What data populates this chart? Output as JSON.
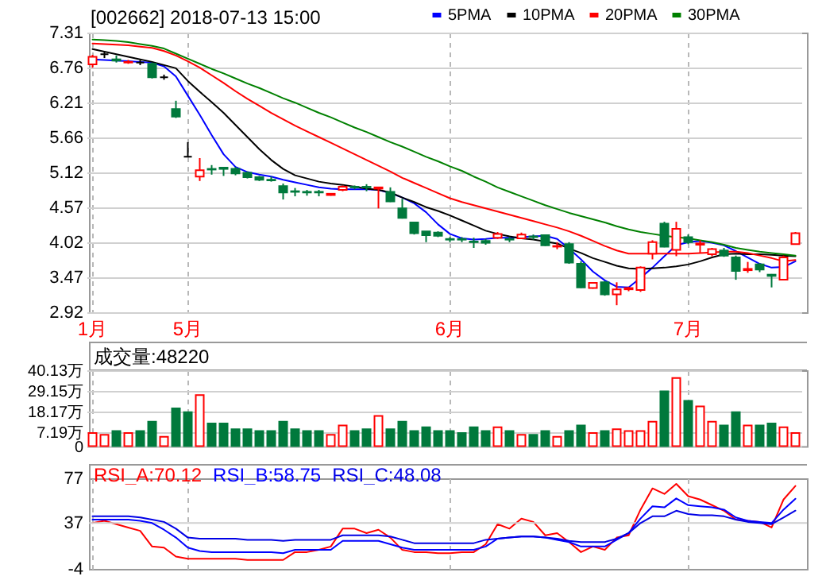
{
  "chart_data": [
    {
      "type": "candlestick",
      "title": "[002662] 2018-07-13 15:00",
      "categories": [
        "1月",
        null,
        null,
        null,
        null,
        null,
        null,
        null,
        "5月",
        null,
        null,
        null,
        null,
        null,
        null,
        null,
        null,
        null,
        null,
        null,
        null,
        null,
        null,
        null,
        null,
        null,
        null,
        null,
        null,
        null,
        "6月",
        null,
        null,
        null,
        null,
        null,
        null,
        null,
        null,
        null,
        null,
        null,
        null,
        null,
        null,
        null,
        null,
        null,
        null,
        null,
        "7月",
        null,
        null,
        null,
        null,
        null,
        null,
        null,
        null,
        null
      ],
      "ohlc": [
        [
          6.81,
          6.96,
          6.76,
          6.93
        ],
        [
          6.97,
          7.01,
          6.91,
          6.97
        ],
        [
          6.89,
          6.95,
          6.84,
          6.87
        ],
        [
          6.84,
          6.88,
          6.82,
          6.85
        ],
        [
          6.84,
          6.88,
          6.8,
          6.84
        ],
        [
          6.82,
          6.84,
          6.59,
          6.61
        ],
        [
          6.61,
          6.65,
          6.57,
          6.61
        ],
        [
          6.11,
          6.24,
          5.97,
          5.99
        ],
        [
          5.36,
          5.59,
          5.36,
          5.36
        ],
        [
          5.05,
          5.34,
          4.98,
          5.15
        ],
        [
          5.17,
          5.23,
          5.08,
          5.16
        ],
        [
          5.19,
          5.19,
          5.06,
          5.17
        ],
        [
          5.17,
          5.2,
          5.07,
          5.1
        ],
        [
          5.11,
          5.13,
          5.02,
          5.04
        ],
        [
          5.04,
          5.06,
          4.98,
          5.0
        ],
        [
          5.0,
          5.05,
          4.97,
          4.99
        ],
        [
          4.9,
          4.94,
          4.69,
          4.8
        ],
        [
          4.82,
          4.87,
          4.74,
          4.81
        ],
        [
          4.81,
          4.84,
          4.75,
          4.8
        ],
        [
          4.81,
          4.84,
          4.74,
          4.8
        ],
        [
          4.76,
          4.79,
          4.75,
          4.78
        ],
        [
          4.84,
          4.91,
          4.82,
          4.89
        ],
        [
          4.89,
          4.91,
          4.85,
          4.88
        ],
        [
          4.89,
          4.93,
          4.82,
          4.88
        ],
        [
          4.86,
          4.89,
          4.55,
          4.88
        ],
        [
          4.81,
          4.88,
          4.65,
          4.66
        ],
        [
          4.55,
          4.7,
          4.39,
          4.4
        ],
        [
          4.33,
          4.33,
          4.14,
          4.16
        ],
        [
          4.19,
          4.19,
          4.02,
          4.13
        ],
        [
          4.17,
          4.19,
          4.1,
          4.12
        ],
        [
          4.07,
          4.1,
          4.02,
          4.06
        ],
        [
          4.07,
          4.1,
          4.02,
          4.06
        ],
        [
          4.03,
          4.09,
          3.93,
          4.02
        ],
        [
          4.04,
          4.07,
          3.98,
          4.01
        ],
        [
          4.09,
          4.18,
          4.07,
          4.15
        ],
        [
          4.07,
          4.1,
          4.02,
          4.06
        ],
        [
          4.08,
          4.17,
          4.07,
          4.14
        ],
        [
          4.11,
          4.14,
          4.06,
          4.1
        ],
        [
          4.13,
          4.14,
          3.96,
          3.97
        ],
        [
          3.95,
          4.02,
          3.91,
          3.96
        ],
        [
          3.99,
          4.02,
          3.68,
          3.7
        ],
        [
          3.68,
          3.72,
          3.3,
          3.31
        ],
        [
          3.3,
          3.39,
          3.29,
          3.38
        ],
        [
          3.39,
          3.41,
          3.18,
          3.2
        ],
        [
          3.2,
          3.39,
          3.03,
          3.28
        ],
        [
          3.28,
          3.32,
          3.25,
          3.3
        ],
        [
          3.27,
          3.64,
          3.24,
          3.62
        ],
        [
          3.84,
          4.05,
          3.75,
          4.02
        ],
        [
          4.31,
          4.34,
          3.94,
          3.95
        ],
        [
          3.9,
          4.34,
          3.8,
          4.23
        ],
        [
          4.1,
          4.14,
          3.99,
          4.02
        ],
        [
          3.98,
          4.05,
          3.85,
          4.0
        ],
        [
          3.83,
          3.93,
          3.8,
          3.91
        ],
        [
          3.89,
          3.93,
          3.79,
          3.81
        ],
        [
          3.78,
          3.81,
          3.43,
          3.57
        ],
        [
          3.58,
          3.71,
          3.54,
          3.6
        ],
        [
          3.67,
          3.69,
          3.55,
          3.59
        ],
        [
          3.51,
          3.52,
          3.31,
          3.49
        ],
        [
          3.43,
          3.81,
          3.42,
          3.78
        ],
        [
          3.99,
          4.18,
          3.98,
          4.16
        ]
      ],
      "colors": [
        "#ff0000",
        "#000000",
        "#00793c",
        "#ff0000",
        "#000000",
        "#00793c",
        "#000000",
        "#00793c",
        "#000000",
        "#ff0000",
        "#00793c",
        "#00793c",
        "#00793c",
        "#00793c",
        "#00793c",
        "#00793c",
        "#00793c",
        "#00793c",
        "#00793c",
        "#00793c",
        "#ff0000",
        "#ff0000",
        "#00793c",
        "#00793c",
        "#ff0000",
        "#00793c",
        "#00793c",
        "#00793c",
        "#00793c",
        "#00793c",
        "#00793c",
        "#00793c",
        "#00793c",
        "#00793c",
        "#ff0000",
        "#00793c",
        "#ff0000",
        "#00793c",
        "#00793c",
        "#ff0000",
        "#00793c",
        "#00793c",
        "#ff0000",
        "#00793c",
        "#ff0000",
        "#ff0000",
        "#ff0000",
        "#ff0000",
        "#00793c",
        "#ff0000",
        "#00793c",
        "#ff0000",
        "#ff0000",
        "#00793c",
        "#00793c",
        "#ff0000",
        "#00793c",
        "#00793c",
        "#ff0000",
        "#ff0000"
      ],
      "series": [
        {
          "name": "5PMA",
          "type": "line",
          "color": "#0000ff",
          "values": [
            6.89,
            6.88,
            6.87,
            6.86,
            6.85,
            6.84,
            6.78,
            6.62,
            6.32,
            6.02,
            5.7,
            5.4,
            5.2,
            5.12,
            5.08,
            5.05,
            5.0,
            4.96,
            4.92,
            4.88,
            4.86,
            4.85,
            4.85,
            4.85,
            4.84,
            4.79,
            4.72,
            4.63,
            4.49,
            4.3,
            4.15,
            4.08,
            4.06,
            4.07,
            4.09,
            4.09,
            4.1,
            4.11,
            4.12,
            4.07,
            3.92,
            3.75,
            3.56,
            3.42,
            3.32,
            3.31,
            3.46,
            3.62,
            3.8,
            3.97,
            4.02,
            4.04,
            4.01,
            3.97,
            3.88,
            3.78,
            3.68,
            3.62,
            3.63,
            3.72
          ]
        },
        {
          "name": "10PMA",
          "type": "line",
          "color": "#000000",
          "values": [
            7.05,
            7.01,
            6.97,
            6.93,
            6.89,
            6.85,
            6.8,
            6.75,
            6.55,
            6.38,
            6.22,
            6.05,
            5.86,
            5.67,
            5.48,
            5.31,
            5.17,
            5.07,
            5.02,
            4.97,
            4.94,
            4.92,
            4.89,
            4.86,
            4.84,
            4.8,
            4.72,
            4.65,
            4.57,
            4.51,
            4.44,
            4.36,
            4.28,
            4.2,
            4.15,
            4.11,
            4.08,
            4.06,
            4.03,
            4.0,
            3.92,
            3.85,
            3.77,
            3.71,
            3.65,
            3.61,
            3.6,
            3.61,
            3.62,
            3.64,
            3.67,
            3.72,
            3.78,
            3.83,
            3.84,
            3.83,
            3.83,
            3.82,
            3.81,
            3.8
          ]
        },
        {
          "name": "20PMA",
          "type": "line",
          "color": "#ff0000",
          "values": [
            7.14,
            7.13,
            7.12,
            7.11,
            7.09,
            7.07,
            7.02,
            6.95,
            6.86,
            6.76,
            6.64,
            6.52,
            6.39,
            6.27,
            6.16,
            6.05,
            5.95,
            5.85,
            5.76,
            5.67,
            5.58,
            5.49,
            5.4,
            5.31,
            5.22,
            5.13,
            5.03,
            4.95,
            4.87,
            4.79,
            4.71,
            4.65,
            4.6,
            4.55,
            4.5,
            4.45,
            4.4,
            4.35,
            4.3,
            4.25,
            4.19,
            4.12,
            4.04,
            3.96,
            3.89,
            3.84,
            3.84,
            3.84,
            3.84,
            3.84,
            3.84,
            3.85,
            3.86,
            3.87,
            3.87,
            3.85,
            3.81,
            3.77,
            3.72,
            3.74
          ]
        },
        {
          "name": "30PMA",
          "type": "line",
          "color": "#008000",
          "values": [
            7.2,
            7.19,
            7.18,
            7.16,
            7.13,
            7.1,
            7.06,
            6.98,
            6.9,
            6.82,
            6.74,
            6.67,
            6.59,
            6.51,
            6.44,
            6.36,
            6.28,
            6.21,
            6.13,
            6.05,
            5.98,
            5.9,
            5.82,
            5.75,
            5.67,
            5.59,
            5.52,
            5.44,
            5.36,
            5.29,
            5.21,
            5.14,
            5.05,
            4.97,
            4.88,
            4.81,
            4.74,
            4.67,
            4.6,
            4.54,
            4.48,
            4.43,
            4.38,
            4.33,
            4.27,
            4.22,
            4.18,
            4.15,
            4.12,
            4.1,
            4.08,
            4.05,
            4.02,
            3.98,
            3.93,
            3.9,
            3.87,
            3.85,
            3.83,
            3.81
          ]
        }
      ],
      "ylim": [
        2.92,
        7.31
      ],
      "yticks": [
        2.92,
        3.47,
        4.02,
        4.57,
        5.12,
        5.66,
        6.21,
        6.76,
        7.31
      ],
      "grid": true,
      "legend": "top"
    },
    {
      "type": "bar",
      "title": "成交量:48220",
      "categories": [
        null,
        null,
        null,
        null,
        null,
        null,
        null,
        null,
        null,
        null,
        null,
        null,
        null,
        null,
        null,
        null,
        null,
        null,
        null,
        null,
        null,
        null,
        null,
        null,
        null,
        null,
        null,
        null,
        null,
        null,
        null,
        null,
        null,
        null,
        null,
        null,
        null,
        null,
        null,
        null,
        null,
        null,
        null,
        null,
        null,
        null,
        null,
        null,
        null,
        null,
        null,
        null,
        null,
        null,
        null,
        null,
        null,
        null,
        null,
        null
      ],
      "values": [
        7,
        6,
        8,
        7,
        8,
        13,
        5,
        20,
        18,
        27,
        12,
        12,
        9,
        9,
        8,
        8,
        13,
        9,
        8,
        8,
        6,
        11,
        8,
        9,
        16,
        9,
        13,
        8,
        10,
        8,
        8,
        7,
        10,
        8,
        10,
        8,
        6,
        6,
        8,
        5,
        8,
        11,
        7,
        8,
        9,
        8,
        8,
        13,
        29,
        36,
        24,
        21,
        13,
        11,
        18,
        11,
        11,
        12,
        10,
        7
      ],
      "colors": [
        "#ff0000",
        "#ff0000",
        "#00793c",
        "#ff0000",
        "#00793c",
        "#00793c",
        "#ff0000",
        "#00793c",
        "#00793c",
        "#ff0000",
        "#00793c",
        "#00793c",
        "#00793c",
        "#00793c",
        "#00793c",
        "#00793c",
        "#00793c",
        "#00793c",
        "#00793c",
        "#00793c",
        "#ff0000",
        "#ff0000",
        "#00793c",
        "#00793c",
        "#ff0000",
        "#00793c",
        "#00793c",
        "#00793c",
        "#00793c",
        "#00793c",
        "#00793c",
        "#00793c",
        "#00793c",
        "#00793c",
        "#ff0000",
        "#00793c",
        "#ff0000",
        "#00793c",
        "#00793c",
        "#ff0000",
        "#00793c",
        "#00793c",
        "#ff0000",
        "#00793c",
        "#ff0000",
        "#ff0000",
        "#ff0000",
        "#ff0000",
        "#00793c",
        "#ff0000",
        "#00793c",
        "#ff0000",
        "#ff0000",
        "#00793c",
        "#00793c",
        "#ff0000",
        "#00793c",
        "#00793c",
        "#ff0000",
        "#ff0000"
      ],
      "ylim": [
        0,
        40.13
      ],
      "yticks": [
        0,
        {
          "value": 7.19,
          "label": "7.19万"
        },
        {
          "value": 18.17,
          "label": "18.17万"
        },
        {
          "value": 29.15,
          "label": "29.15万"
        },
        {
          "value": 40.13,
          "label": "40.13万"
        }
      ],
      "grid": true,
      "tick_labels": "y"
    },
    {
      "type": "line",
      "categories": [
        null,
        null,
        null,
        null,
        null,
        null,
        null,
        null,
        null,
        null,
        null,
        null,
        null,
        null,
        null,
        null,
        null,
        null,
        null,
        null,
        null,
        null,
        null,
        null,
        null,
        null,
        null,
        null,
        null,
        null,
        null,
        null,
        null,
        null,
        null,
        null,
        null,
        null,
        null,
        null,
        null,
        null,
        null,
        null,
        null,
        null,
        null,
        null,
        null,
        null,
        null,
        null,
        null,
        null,
        null,
        null,
        null,
        null,
        null,
        null
      ],
      "series": [
        {
          "name": "RSI_A:70.12",
          "color": "#ff0000",
          "values": [
            37,
            39,
            36,
            33,
            30,
            16,
            15,
            7,
            5,
            5,
            5,
            5,
            5,
            4,
            4,
            4,
            4,
            11,
            11,
            13,
            16,
            32,
            32,
            28,
            31,
            24,
            13,
            11,
            11,
            10,
            10,
            11,
            11,
            18,
            36,
            32,
            41,
            38,
            26,
            28,
            20,
            11,
            16,
            13,
            24,
            26,
            49,
            68,
            63,
            72,
            61,
            58,
            53,
            48,
            40,
            39,
            38,
            33,
            58,
            70.12
          ]
        },
        {
          "name": "RSI_B:58.75",
          "color": "#0000ff",
          "values": [
            40,
            40,
            40,
            40,
            39,
            37,
            31,
            24,
            15,
            12,
            11,
            11,
            11,
            11,
            11,
            11,
            10,
            13,
            13,
            13,
            13,
            21,
            21,
            21,
            21,
            18,
            15,
            13,
            13,
            13,
            13,
            13,
            13,
            16,
            23,
            24,
            25,
            25,
            24,
            22,
            20,
            16,
            16,
            16,
            22,
            28,
            41,
            52,
            51,
            59,
            53,
            52,
            51,
            49,
            42,
            39,
            38,
            37,
            49,
            58.75
          ]
        },
        {
          "name": "RSI_C:48.08",
          "color": "#0000e6",
          "values": [
            43,
            43,
            43,
            43,
            42,
            40,
            38,
            32,
            24,
            23,
            23,
            23,
            23,
            22,
            22,
            22,
            21,
            22,
            22,
            22,
            22,
            26,
            26,
            26,
            26,
            25,
            22,
            19,
            19,
            19,
            19,
            19,
            19,
            22,
            23,
            24,
            25,
            25,
            24,
            23,
            21,
            20,
            20,
            20,
            23,
            28,
            37,
            43,
            43,
            48,
            45,
            44,
            44,
            43,
            40,
            38,
            37,
            36,
            42,
            48.08
          ]
        }
      ],
      "ylim": [
        -4,
        77
      ],
      "yticks": [
        -4,
        37,
        77
      ],
      "grid": "x",
      "ref_lines": [
        {
          "axis": "y",
          "value": 37,
          "color": "#d0d0d0"
        }
      ],
      "legend": "top left",
      "tick_labels": "y"
    }
  ]
}
